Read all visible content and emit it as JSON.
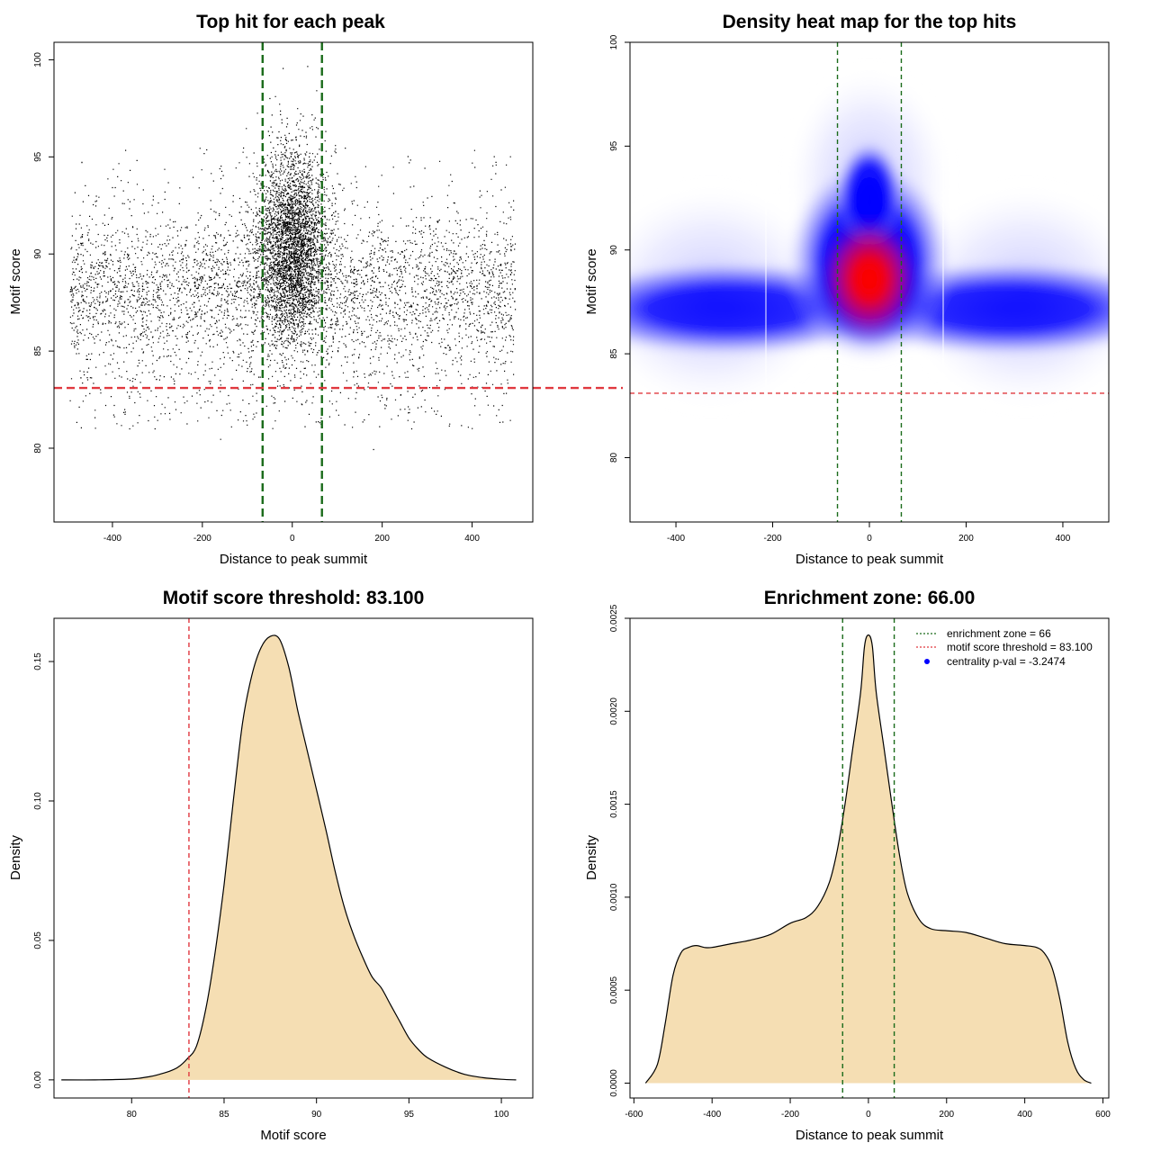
{
  "chart_data": [
    {
      "type": "scatter",
      "title": "Top hit for each peak",
      "xlabel": "Distance to peak summit",
      "ylabel": "Motif score",
      "xlim": [
        -530,
        535
      ],
      "ylim": [
        76.2,
        100.9
      ],
      "xticks": [
        -400,
        -200,
        0,
        200,
        400
      ],
      "yticks": [
        80,
        85,
        90,
        95,
        100
      ],
      "grid": false,
      "point_color": "#000000",
      "vlines": [
        {
          "x": -66,
          "color": "#1a6b1a",
          "style": "dashed"
        },
        {
          "x": 66,
          "color": "#1a6b1a",
          "style": "dashed"
        }
      ],
      "hlines": [
        {
          "y": 83.1,
          "color": "#e0383f",
          "style": "dashed"
        }
      ],
      "distribution": {
        "x_range": [
          -495,
          495
        ],
        "bulk_center_y": 88.0,
        "bulk_sd_y": 2.0,
        "central_peak_y": 91.0,
        "central_sd_x": 38
      }
    },
    {
      "type": "heatmap",
      "title": "Density heat map for the top hits",
      "xlabel": "Distance to peak summit",
      "ylabel": "Motif score",
      "xlim": [
        -495,
        495
      ],
      "ylim": [
        76.9,
        100.0
      ],
      "xticks": [
        -400,
        -200,
        0,
        200,
        400
      ],
      "yticks": [
        80,
        85,
        90,
        95,
        100
      ],
      "grid": false,
      "color_scale": [
        "#ffffff",
        "#0000ff",
        "#ff0000"
      ],
      "vlines": [
        {
          "x": -66,
          "color": "#1a6b1a",
          "style": "dashed"
        },
        {
          "x": 66,
          "color": "#1a6b1a",
          "style": "dashed"
        }
      ],
      "hlines": [
        {
          "y": 83.1,
          "color": "#e0383f",
          "style": "dashed"
        }
      ],
      "hot_spot": {
        "x": 0,
        "y": 88.5
      }
    },
    {
      "type": "area",
      "title": "Motif score threshold: 83.100",
      "xlabel": "Motif score",
      "ylabel": "Density",
      "xlim": [
        75.8,
        101.7
      ],
      "ylim": [
        -0.0065,
        0.1655
      ],
      "xticks": [
        80,
        85,
        90,
        95,
        100
      ],
      "yticks": [
        0.0,
        0.05,
        0.1,
        0.15
      ],
      "ytick_labels": [
        "0.00",
        "0.05",
        "0.10",
        "0.15"
      ],
      "fill": "#f5deb3",
      "grid": false,
      "vlines": [
        {
          "x": 83.1,
          "color": "#e0383f",
          "style": "dashed"
        }
      ],
      "x": [
        76.2,
        78,
        80,
        81,
        81.5,
        82,
        82.5,
        83,
        83.5,
        84,
        84.5,
        85,
        85.5,
        86,
        86.5,
        87,
        87.5,
        88,
        88.5,
        89,
        89.5,
        90,
        90.5,
        91,
        91.5,
        92,
        92.5,
        93,
        93.5,
        94,
        94.5,
        95,
        95.5,
        96,
        97,
        98,
        99,
        100,
        100.8
      ],
      "y": [
        0.0,
        0.0,
        0.0003,
        0.0012,
        0.002,
        0.003,
        0.0045,
        0.0075,
        0.012,
        0.025,
        0.045,
        0.07,
        0.1,
        0.128,
        0.145,
        0.155,
        0.159,
        0.158,
        0.148,
        0.132,
        0.118,
        0.104,
        0.09,
        0.075,
        0.062,
        0.052,
        0.044,
        0.037,
        0.033,
        0.027,
        0.021,
        0.015,
        0.011,
        0.008,
        0.0045,
        0.002,
        0.0008,
        0.0002,
        0.0
      ]
    },
    {
      "type": "area",
      "title": "Enrichment zone: 66.00",
      "xlabel": "Distance to peak summit",
      "ylabel": "Density",
      "xlim": [
        -610,
        615
      ],
      "ylim": [
        -8e-05,
        0.0025
      ],
      "xticks": [
        -600,
        -400,
        -200,
        0,
        200,
        400,
        600
      ],
      "yticks": [
        0.0,
        0.0005,
        0.001,
        0.0015,
        0.002,
        0.0025
      ],
      "ytick_labels": [
        "0.0000",
        "0.0005",
        "0.0010",
        "0.0015",
        "0.0020",
        "0.0025"
      ],
      "fill": "#f5deb3",
      "grid": false,
      "vlines": [
        {
          "x": -66,
          "color": "#1a6b1a",
          "style": "dashed"
        },
        {
          "x": 66,
          "color": "#1a6b1a",
          "style": "dashed"
        }
      ],
      "x": [
        -570,
        -540,
        -520,
        -500,
        -480,
        -460,
        -440,
        -420,
        -400,
        -350,
        -300,
        -250,
        -200,
        -160,
        -130,
        -100,
        -80,
        -60,
        -40,
        -20,
        -10,
        0,
        10,
        20,
        40,
        60,
        80,
        100,
        130,
        160,
        200,
        250,
        300,
        350,
        400,
        430,
        450,
        470,
        490,
        510,
        530,
        550,
        570
      ],
      "y": [
        0.0,
        0.0001,
        0.00032,
        0.00058,
        0.0007,
        0.00073,
        0.00074,
        0.00073,
        0.00073,
        0.00075,
        0.00077,
        0.0008,
        0.00086,
        0.00089,
        0.00095,
        0.00108,
        0.00125,
        0.0015,
        0.0018,
        0.0021,
        0.00235,
        0.00241,
        0.00235,
        0.0021,
        0.0018,
        0.0015,
        0.00122,
        0.00102,
        0.00088,
        0.00083,
        0.00082,
        0.00081,
        0.00078,
        0.00075,
        0.00074,
        0.00073,
        0.0007,
        0.00062,
        0.00045,
        0.00022,
        8e-05,
        2e-05,
        0.0
      ],
      "legend": {
        "placement": "top-right",
        "entries": [
          {
            "label": "enrichment zone = 66",
            "color": "#1a6b1a",
            "marker": "dotted-line"
          },
          {
            "label": "motif score threshold = 83.100",
            "color": "#e0383f",
            "marker": "dotted-line"
          },
          {
            "label": "centrality p-val = -3.2474",
            "color": "#0000ff",
            "marker": "point"
          }
        ]
      }
    }
  ]
}
